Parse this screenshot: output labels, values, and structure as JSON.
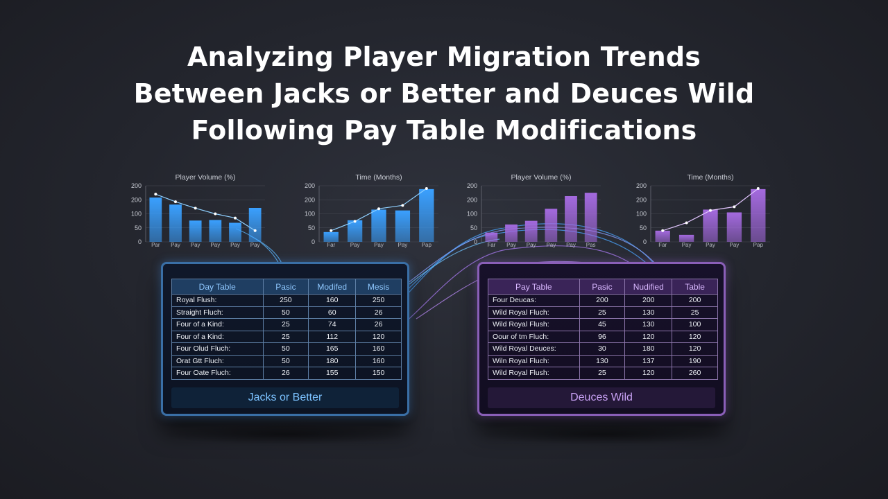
{
  "title_lines": [
    "Analyzing Player Migration Trends",
    "Between Jacks or Better and Deuces Wild",
    "Following Pay Table Modifications"
  ],
  "chart_data": [
    {
      "type": "bar",
      "title": "Player Volume (%)",
      "y_ticks": [
        "200",
        "200",
        "100",
        "50",
        "0"
      ],
      "ylim": [
        0,
        200
      ],
      "categories": [
        "Par",
        "Pay",
        "Pay",
        "Pay",
        "Pay",
        "Pay"
      ],
      "values": [
        158,
        133,
        76,
        78,
        68,
        121
      ],
      "line": [
        170,
        143,
        120,
        100,
        85,
        40
      ],
      "color": "#3aa0ff"
    },
    {
      "type": "bar",
      "title": "Time (Months)",
      "y_ticks": [
        "200",
        "200",
        "100",
        "50",
        "0"
      ],
      "ylim": [
        0,
        200
      ],
      "categories": [
        "Far",
        "Pay",
        "Pay",
        "Pay",
        "Pap"
      ],
      "values": [
        35,
        77,
        115,
        112,
        188
      ],
      "line": [
        40,
        73,
        118,
        130,
        190
      ],
      "color": "#3aa0ff"
    },
    {
      "type": "bar",
      "title": "Player Volume (%)",
      "y_ticks": [
        "200",
        "200",
        "100",
        "50",
        "0"
      ],
      "ylim": [
        0,
        200
      ],
      "categories": [
        "Far",
        "Pay",
        "Pay",
        "Pay",
        "Pay",
        "Pas"
      ],
      "values": [
        33,
        62,
        75,
        118,
        163,
        175
      ],
      "line": [],
      "color": "#a46adf"
    },
    {
      "type": "bar",
      "title": "Time (Months)",
      "y_ticks": [
        "200",
        "200",
        "100",
        "50",
        "0"
      ],
      "ylim": [
        0,
        200
      ],
      "categories": [
        "Far",
        "Pay",
        "Pay",
        "Pay",
        "Pap"
      ],
      "values": [
        40,
        25,
        115,
        105,
        188
      ],
      "line": [
        40,
        68,
        112,
        125,
        190
      ],
      "color": "#a46adf"
    }
  ],
  "jacks": {
    "headers": [
      "Day Table",
      "Pasic",
      "Modifed",
      "Mesis"
    ],
    "rows": [
      [
        "Royal Flush:",
        "250",
        "160",
        "250"
      ],
      [
        "Straight Fluch:",
        "50",
        "60",
        "26"
      ],
      [
        "Four of a Kind:",
        "25",
        "74",
        "26"
      ],
      [
        "Four of a Kind:",
        "25",
        "112",
        "120"
      ],
      [
        "Four Olud Fluch:",
        "50",
        "165",
        "160"
      ],
      [
        "Orat Gtt Fluch:",
        "50",
        "180",
        "160"
      ],
      [
        "Four Oate Fluch:",
        "26",
        "155",
        "150"
      ]
    ],
    "label": "Jacks or Better"
  },
  "deuces": {
    "headers": [
      "Pay Table",
      "Pasic",
      "Nudified",
      "Table"
    ],
    "rows": [
      [
        "Four Deucas:",
        "200",
        "200",
        "200"
      ],
      [
        "Wild Royal Fluch:",
        "25",
        "130",
        "25"
      ],
      [
        "Wild Royal Flush:",
        "45",
        "130",
        "100"
      ],
      [
        "Oour of tm Fluch:",
        "96",
        "120",
        "120"
      ],
      [
        "Wild Royal Deuces:",
        "30",
        "180",
        "120"
      ],
      [
        "Wiln Royal Fluch:",
        "130",
        "137",
        "190"
      ],
      [
        "Wild Royal Flush:",
        "25",
        "120",
        "260"
      ]
    ],
    "label": "Deuces Wild"
  }
}
